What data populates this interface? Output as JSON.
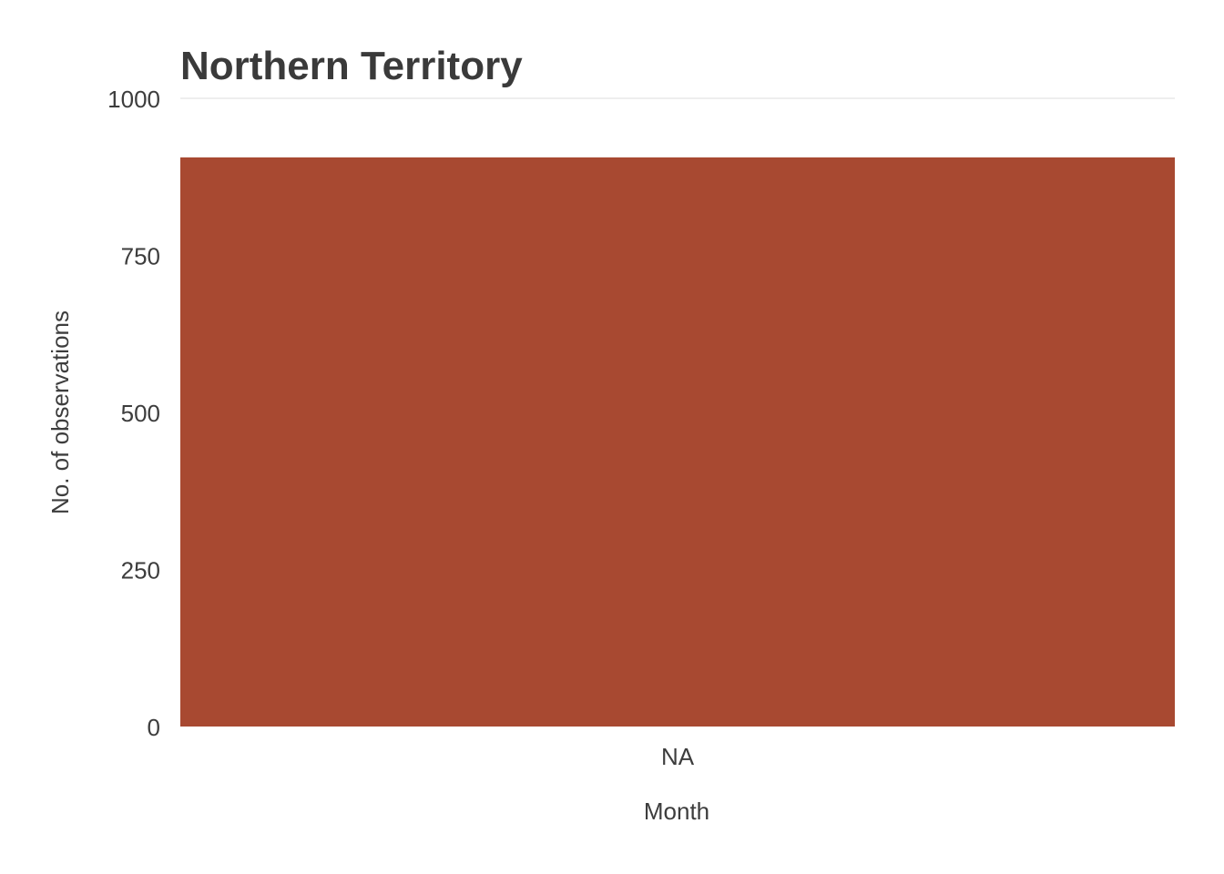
{
  "chart_data": {
    "type": "bar",
    "title": "Northern Territory",
    "xlabel": "Month",
    "ylabel": "No. of observations",
    "categories": [
      "NA"
    ],
    "values": [
      906
    ],
    "ylim": [
      0,
      1000
    ],
    "yticks": [
      0,
      250,
      500,
      750,
      1000
    ],
    "grid": "y-major-top",
    "legend": "none",
    "colors": {
      "bar": "#a84931",
      "text": "#3d3d3d",
      "grid": "#dddddd"
    }
  }
}
